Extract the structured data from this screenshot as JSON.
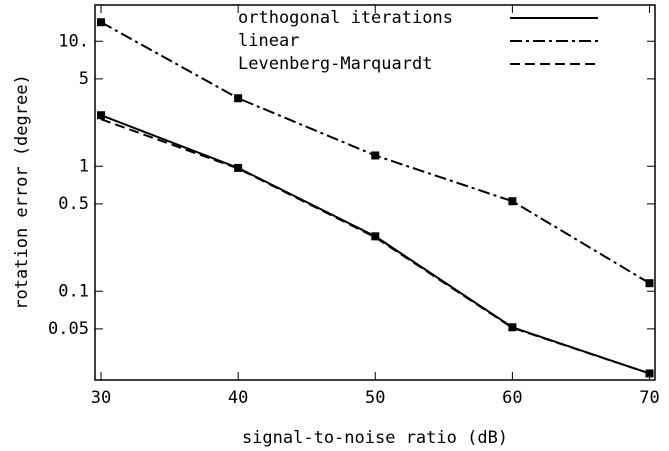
{
  "chart_data": {
    "type": "line",
    "x_label": "signal-to-noise ratio (dB)",
    "y_label": "rotation error (degree)",
    "x": [
      30,
      40,
      50,
      60,
      70
    ],
    "series": [
      {
        "name": "orthogonal iterations",
        "color": "#000000",
        "linestyle": "solid",
        "marker": "square",
        "values": [
          2.56,
          0.97,
          0.275,
          0.0515,
          0.022
        ]
      },
      {
        "name": "linear",
        "color": "#000000",
        "linestyle": "dashdot",
        "marker": "square",
        "values": [
          14.2,
          3.5,
          1.22,
          0.525,
          0.116
        ]
      },
      {
        "name": "Levenberg-Marquardt",
        "color": "#000000",
        "linestyle": "dashed",
        "values": [
          2.38,
          0.96,
          0.27,
          0.051,
          0.022
        ]
      }
    ],
    "xlim": [
      29.56,
      70.4
    ],
    "xticks": [
      30,
      40,
      50,
      60,
      70
    ],
    "ylim": [
      0.0195,
      19.5
    ],
    "ylog": true,
    "yticks": [
      0.05,
      0.1,
      0.5,
      1,
      5,
      {
        "value": 10,
        "label": "10."
      }
    ],
    "legend": "top"
  }
}
